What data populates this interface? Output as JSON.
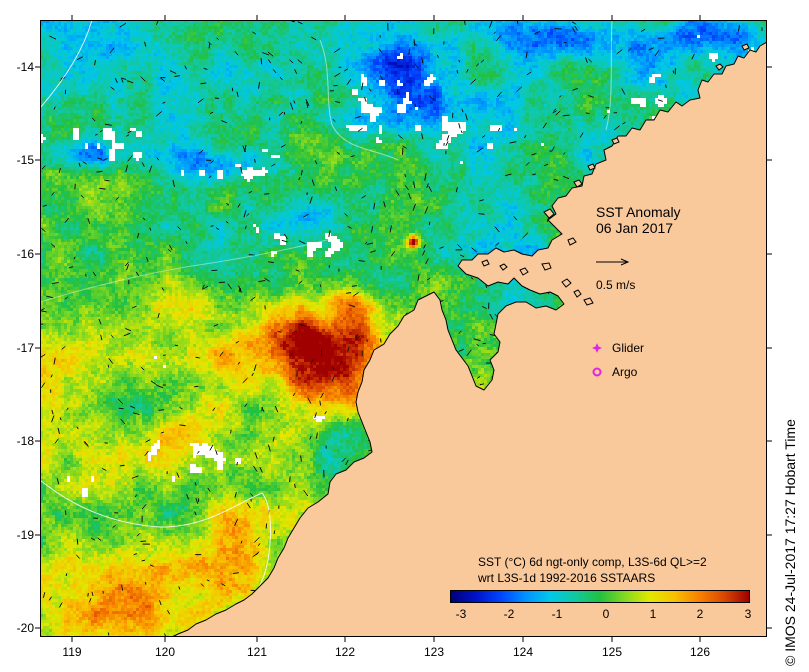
{
  "map": {
    "title": "SST Anomaly",
    "date": "06 Jan 2017",
    "vector_scale_label": "0.5 m/s",
    "land_color": "#f9c99c",
    "legend": [
      {
        "label": "Glider",
        "marker": "star-icon",
        "color": "#e024e0"
      },
      {
        "label": "Argo",
        "marker": "circle-icon",
        "color": "#e024e0"
      }
    ]
  },
  "axes": {
    "x_ticks": [
      "119",
      "120",
      "121",
      "122",
      "123",
      "124",
      "125",
      "126"
    ],
    "y_ticks": [
      "-14",
      "-15",
      "-16",
      "-17",
      "-18",
      "-19",
      "-20"
    ]
  },
  "colorbar": {
    "caption_line1": "SST (°C) 6d ngt-only comp, L3S-6d QL>=2",
    "caption_line2": "wrt L3S-1d 1992-2016 SSTAARS",
    "ticks": [
      "-3",
      "-2",
      "-1",
      "0",
      "1",
      "2",
      "3"
    ],
    "range": [
      -3,
      3
    ],
    "colors": [
      "#00007a",
      "#0012c8",
      "#0044ff",
      "#0092ff",
      "#00c8e8",
      "#12c8a0",
      "#22c040",
      "#84d820",
      "#e2e800",
      "#f8c000",
      "#f88000",
      "#d84800",
      "#a00000"
    ]
  },
  "credit": "© IMOS 24-Jul-2017 17:27 Hobart Time"
}
